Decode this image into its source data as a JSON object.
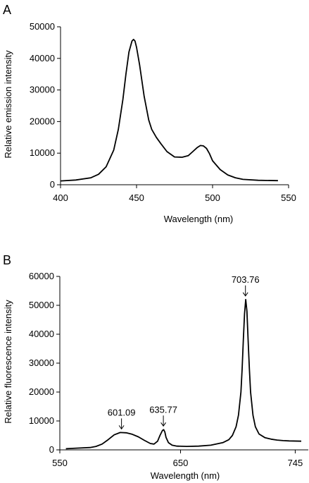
{
  "chart_data": [
    {
      "panel": "A",
      "type": "line",
      "xlabel": "Wavelength (nm)",
      "ylabel": "Relative emission intensity",
      "xlim": [
        400,
        550
      ],
      "ylim": [
        0,
        50000
      ],
      "xticks": [
        "400",
        "450",
        "500",
        "550"
      ],
      "yticks": [
        "0",
        "10000",
        "20000",
        "30000",
        "40000",
        "50000"
      ],
      "grid": false,
      "series": [
        {
          "x": [
            400,
            410,
            420,
            425,
            430,
            435,
            438,
            441,
            443,
            445,
            447,
            448,
            449,
            450,
            452,
            455,
            458,
            460,
            463,
            466,
            470,
            475,
            480,
            484,
            487,
            490,
            492,
            494,
            496,
            498,
            500,
            505,
            510,
            515,
            520,
            530,
            543
          ],
          "y": [
            1200,
            1500,
            2200,
            3300,
            5700,
            11000,
            17500,
            27000,
            35000,
            42000,
            45500,
            46000,
            45500,
            43500,
            38000,
            28000,
            20500,
            17500,
            15000,
            13000,
            10500,
            8800,
            8700,
            9200,
            10500,
            11800,
            12400,
            12300,
            11500,
            9800,
            7600,
            4800,
            3100,
            2200,
            1700,
            1400,
            1300
          ]
        }
      ]
    },
    {
      "panel": "B",
      "type": "line",
      "xlabel": "Wavelength (nm)",
      "ylabel": "Relative fluorescence intensity",
      "xlim": [
        550,
        750
      ],
      "ylim": [
        0,
        60000
      ],
      "xticks": [
        "550",
        "650",
        "745"
      ],
      "xtick_values": [
        550,
        650,
        745
      ],
      "yticks": [
        "0",
        "10000",
        "20000",
        "30000",
        "40000",
        "50000",
        "60000"
      ],
      "grid": false,
      "annotations": [
        {
          "text": "601.09",
          "x": 601.09,
          "y": 6000
        },
        {
          "text": "635.77",
          "x": 635.77,
          "y": 7000
        },
        {
          "text": "703.76",
          "x": 703.76,
          "y": 52000
        }
      ],
      "series": [
        {
          "x": [
            555,
            565,
            575,
            580,
            585,
            590,
            595,
            600,
            605,
            610,
            615,
            620,
            625,
            628,
            631,
            633,
            635,
            636,
            637,
            638,
            640,
            643,
            647,
            655,
            665,
            675,
            685,
            690,
            693,
            696,
            698,
            700,
            701,
            702,
            703,
            704,
            705,
            706,
            707,
            708,
            710,
            712,
            715,
            720,
            725,
            730,
            735,
            740,
            750
          ],
          "y": [
            400,
            600,
            800,
            1200,
            2000,
            3500,
            5200,
            6000,
            5900,
            5400,
            4500,
            3300,
            2200,
            2000,
            3000,
            5000,
            6700,
            7000,
            6200,
            4300,
            2500,
            1600,
            1300,
            1200,
            1300,
            1600,
            2500,
            3500,
            5000,
            8000,
            12000,
            20000,
            28000,
            38000,
            47000,
            52000,
            48000,
            38000,
            28000,
            20000,
            12000,
            8000,
            5500,
            4200,
            3700,
            3400,
            3200,
            3100,
            3000
          ]
        }
      ]
    }
  ],
  "panels": {
    "a": {
      "label": "A"
    },
    "b": {
      "label": "B"
    }
  }
}
